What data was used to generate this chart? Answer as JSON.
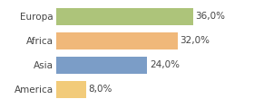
{
  "categories": [
    "America",
    "Asia",
    "Africa",
    "Europa"
  ],
  "values": [
    8.0,
    24.0,
    32.0,
    36.0
  ],
  "bar_colors": [
    "#f2cb7a",
    "#7b9dc7",
    "#f0b87a",
    "#adc47a"
  ],
  "labels": [
    "8,0%",
    "24,0%",
    "32,0%",
    "36,0%"
  ],
  "xlim": [
    0,
    44
  ],
  "background_color": "#ffffff",
  "bar_height": 0.72,
  "label_fontsize": 7.5,
  "tick_fontsize": 7.5,
  "figsize": [
    2.8,
    1.2
  ],
  "dpi": 100
}
